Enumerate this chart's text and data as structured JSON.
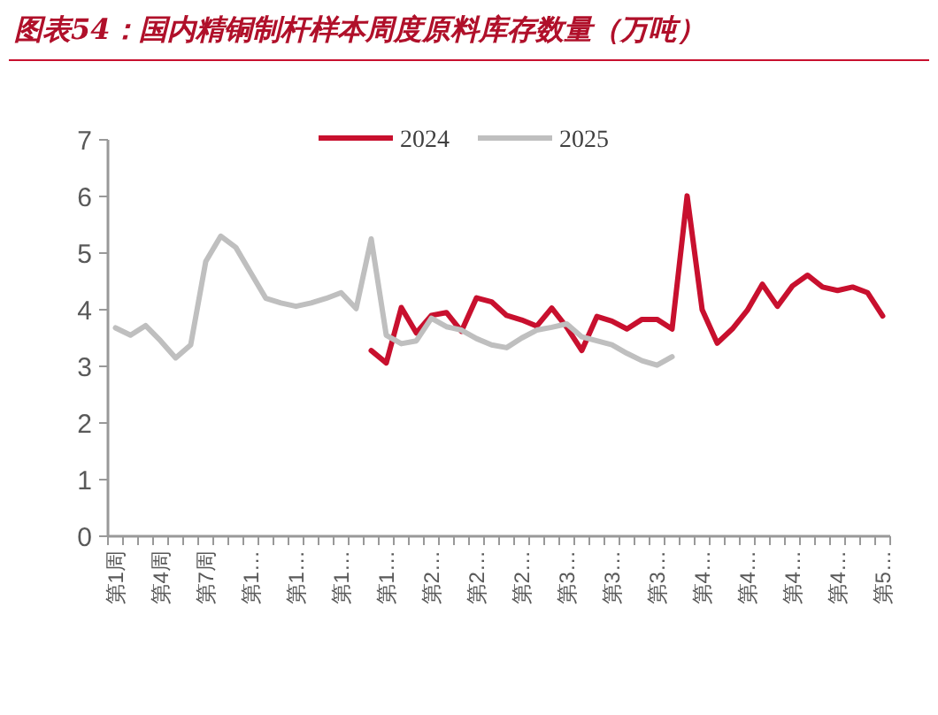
{
  "chart_data": {
    "type": "line",
    "title": "图表54：国内精铜制杆样本周度原料库存数量（万吨）",
    "categories": [
      "第1周",
      null,
      null,
      "第4周",
      null,
      null,
      "第7周",
      null,
      null,
      "第1…",
      null,
      null,
      "第1…",
      null,
      null,
      "第1…",
      null,
      null,
      "第1…",
      null,
      null,
      "第2…",
      null,
      null,
      "第2…",
      null,
      null,
      "第2…",
      null,
      null,
      "第3…",
      null,
      null,
      "第3…",
      null,
      null,
      "第3…",
      null,
      null,
      "第4…",
      null,
      null,
      "第4…",
      null,
      null,
      "第4…",
      null,
      null,
      "第4…",
      null,
      null,
      "第5…"
    ],
    "series": [
      {
        "name": "2024",
        "color": "#c8102e",
        "values": [
          null,
          null,
          null,
          null,
          null,
          null,
          null,
          null,
          null,
          null,
          null,
          null,
          null,
          null,
          null,
          null,
          null,
          3.28,
          3.06,
          4.04,
          3.59,
          3.9,
          3.95,
          3.62,
          4.21,
          4.14,
          3.9,
          3.82,
          3.71,
          4.03,
          3.69,
          3.28,
          3.88,
          3.8,
          3.66,
          3.83,
          3.83,
          3.66,
          6.01,
          4.0,
          3.41,
          3.66,
          3.99,
          4.45,
          4.06,
          4.42,
          4.61,
          4.4,
          4.34,
          4.4,
          4.3,
          3.89
        ]
      },
      {
        "name": "2025",
        "color": "#bfbfbf",
        "values": [
          3.68,
          3.55,
          3.72,
          3.45,
          3.15,
          3.38,
          4.85,
          5.3,
          5.1,
          4.65,
          4.2,
          4.12,
          4.06,
          4.12,
          4.2,
          4.3,
          4.02,
          5.25,
          3.55,
          3.4,
          3.45,
          3.85,
          3.7,
          3.64,
          3.49,
          3.38,
          3.33,
          3.5,
          3.64,
          3.69,
          3.75,
          3.52,
          3.45,
          3.38,
          3.23,
          3.1,
          3.02,
          3.17,
          null,
          null,
          null,
          null,
          null,
          null,
          null,
          null,
          null,
          null,
          null,
          null,
          null,
          null
        ]
      }
    ],
    "ylim": [
      0,
      7
    ],
    "yticks": [
      0,
      1,
      2,
      3,
      4,
      5,
      6,
      7
    ],
    "legend": "top",
    "marker": "none",
    "line_style": "solid"
  }
}
